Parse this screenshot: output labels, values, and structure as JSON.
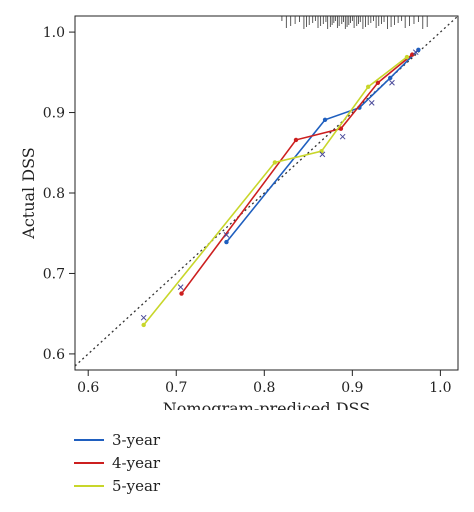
{
  "chart_data": {
    "type": "line",
    "xlabel": "Nomogram-prediced DSS",
    "ylabel": "Actual DSS",
    "xlim": [
      0.585,
      1.02
    ],
    "ylim": [
      0.58,
      1.02
    ],
    "xticks": [
      0.6,
      0.7,
      0.8,
      0.9,
      1.0
    ],
    "yticks": [
      0.6,
      0.7,
      0.8,
      0.9,
      1.0
    ],
    "xtick_labels": [
      "0.6",
      "0.7",
      "0.8",
      "0.9",
      "1.0"
    ],
    "ytick_labels": [
      "0.6",
      "0.7",
      "0.8",
      "0.9",
      "1.0"
    ],
    "reference_line": "dotted diagonal y = x",
    "rug": "top",
    "series": [
      {
        "name": "3-year",
        "color": "#1f5fbf",
        "marker": "circle",
        "x": [
          0.757,
          0.869,
          0.908,
          0.943,
          0.975
        ],
        "y": [
          0.739,
          0.891,
          0.906,
          0.943,
          0.978
        ]
      },
      {
        "name": "4-year",
        "color": "#cc1f1f",
        "marker": "circle",
        "x": [
          0.706,
          0.836,
          0.887,
          0.929,
          0.968
        ],
        "y": [
          0.675,
          0.866,
          0.88,
          0.937,
          0.972
        ]
      },
      {
        "name": "5-year",
        "color": "#c8d62a",
        "marker": "circle",
        "x": [
          0.663,
          0.812,
          0.865,
          0.918,
          0.962
        ],
        "y": [
          0.636,
          0.838,
          0.852,
          0.932,
          0.969
        ]
      }
    ],
    "crosses": {
      "color": "#4a4a9a",
      "points": [
        [
          0.663,
          0.645
        ],
        [
          0.705,
          0.683
        ],
        [
          0.757,
          0.748
        ],
        [
          0.866,
          0.848
        ],
        [
          0.889,
          0.87
        ],
        [
          0.922,
          0.912
        ],
        [
          0.945,
          0.937
        ],
        [
          0.972,
          0.975
        ]
      ]
    },
    "rug_x": [
      0.82,
      0.825,
      0.83,
      0.835,
      0.84,
      0.845,
      0.848,
      0.851,
      0.855,
      0.858,
      0.861,
      0.864,
      0.867,
      0.87,
      0.872,
      0.875,
      0.877,
      0.879,
      0.881,
      0.883,
      0.885,
      0.888,
      0.89,
      0.892,
      0.894,
      0.896,
      0.898,
      0.9,
      0.902,
      0.905,
      0.907,
      0.909,
      0.912,
      0.915,
      0.918,
      0.921,
      0.924,
      0.927,
      0.93,
      0.933,
      0.936,
      0.94,
      0.944,
      0.948,
      0.952,
      0.956,
      0.96,
      0.965,
      0.97,
      0.975,
      0.98,
      0.985
    ],
    "legend": {
      "placement": "bottom-left",
      "items": [
        "3-year",
        "4-year",
        "5-year"
      ]
    }
  }
}
